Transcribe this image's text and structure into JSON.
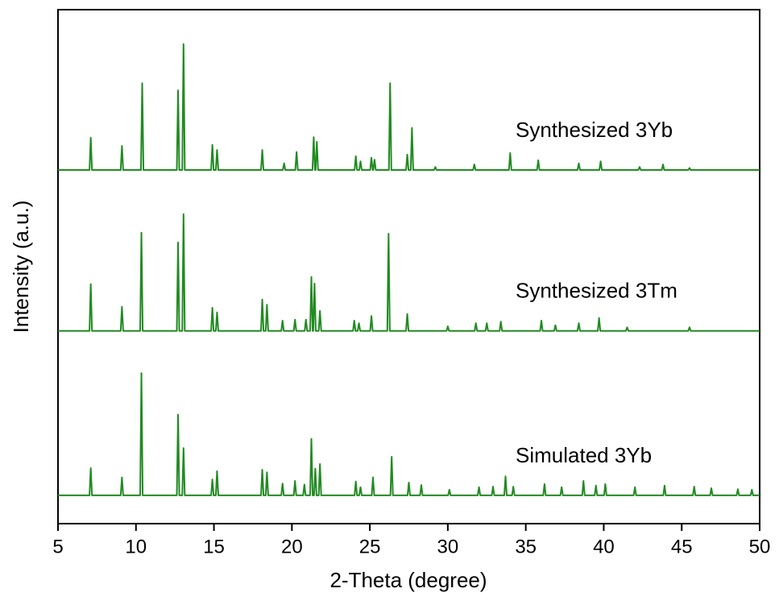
{
  "chart_data": {
    "type": "line",
    "x_label": "2-Theta (degree)",
    "y_label": "Intensity (a.u.)",
    "xlim": [
      5,
      50
    ],
    "xticks": [
      5,
      10,
      15,
      20,
      25,
      30,
      35,
      40,
      45,
      50
    ],
    "ylim": [
      0,
      100
    ],
    "series": [
      {
        "name": "Synthesized 3Yb",
        "color": "#228b22",
        "x": [
          5,
          7.02,
          7.1,
          7.18,
          9.02,
          9.1,
          9.18,
          10.32,
          10.4,
          10.48,
          12.62,
          12.7,
          12.78,
          12.97,
          13.05,
          13.13,
          14.82,
          14.9,
          14.98,
          15.12,
          15.2,
          15.28,
          18.02,
          18.1,
          18.18,
          19.42,
          19.5,
          19.58,
          20.22,
          20.3,
          20.38,
          21.32,
          21.4,
          21.48,
          21.52,
          21.6,
          21.68,
          24.02,
          24.1,
          24.18,
          24.32,
          24.4,
          24.48,
          25.02,
          25.1,
          25.18,
          25.22,
          25.3,
          25.38,
          26.22,
          26.3,
          26.38,
          27.32,
          27.4,
          27.48,
          27.62,
          27.7,
          27.78,
          29.12,
          29.2,
          29.28,
          31.62,
          31.7,
          31.78,
          33.92,
          34.0,
          34.08,
          35.72,
          35.8,
          35.88,
          38.32,
          38.4,
          38.48,
          39.72,
          39.8,
          39.88,
          42.22,
          42.3,
          42.38,
          43.72,
          43.8,
          43.88,
          45.42,
          45.5,
          45.58,
          50
        ],
        "values": [
          68.8,
          68.8,
          75.1,
          68.8,
          68.8,
          73.5,
          68.8,
          68.8,
          85.7,
          68.8,
          68.8,
          84.3,
          68.8,
          68.8,
          93.3,
          68.8,
          68.8,
          73.7,
          68.8,
          68.8,
          72.7,
          68.8,
          68.8,
          72.7,
          68.8,
          68.8,
          70.1,
          68.8,
          68.8,
          72.3,
          68.8,
          68.8,
          75.2,
          68.8,
          68.8,
          74.3,
          68.8,
          68.8,
          71.5,
          68.8,
          68.8,
          70.5,
          68.8,
          68.8,
          71.2,
          68.8,
          68.8,
          70.8,
          68.8,
          68.8,
          85.7,
          68.8,
          68.8,
          71.8,
          68.8,
          68.8,
          77.0,
          68.8,
          68.8,
          69.4,
          68.8,
          68.8,
          69.9,
          68.8,
          68.8,
          72.1,
          68.8,
          68.8,
          70.7,
          68.8,
          68.8,
          70.1,
          68.8,
          68.8,
          70.5,
          68.8,
          68.8,
          69.4,
          68.8,
          68.8,
          69.9,
          68.8,
          68.8,
          69.2,
          68.8,
          68.8
        ]
      },
      {
        "name": "Synthesized 3Tm",
        "color": "#228b22",
        "x": [
          5,
          7.02,
          7.1,
          7.18,
          9.02,
          9.1,
          9.18,
          10.27,
          10.35,
          10.43,
          12.62,
          12.7,
          12.78,
          12.97,
          13.05,
          13.13,
          14.82,
          14.9,
          14.98,
          15.12,
          15.2,
          15.28,
          18.02,
          18.1,
          18.18,
          18.32,
          18.4,
          18.48,
          19.32,
          19.4,
          19.48,
          20.12,
          20.2,
          20.28,
          20.82,
          20.9,
          20.98,
          21.17,
          21.25,
          21.33,
          21.37,
          21.45,
          21.53,
          21.72,
          21.8,
          21.88,
          23.92,
          24.0,
          24.08,
          24.22,
          24.3,
          24.38,
          25.02,
          25.1,
          25.18,
          26.12,
          26.2,
          26.28,
          27.32,
          27.4,
          27.48,
          29.92,
          30.0,
          30.08,
          31.72,
          31.8,
          31.88,
          32.42,
          32.5,
          32.58,
          33.32,
          33.4,
          33.48,
          35.92,
          36.0,
          36.08,
          36.82,
          36.9,
          36.98,
          38.32,
          38.4,
          38.48,
          39.62,
          39.7,
          39.78,
          41.42,
          41.5,
          41.58,
          45.42,
          45.5,
          45.58,
          50
        ],
        "values": [
          37.5,
          37.5,
          46.6,
          37.5,
          37.5,
          42.2,
          37.5,
          37.5,
          56.6,
          37.5,
          37.5,
          54.7,
          37.5,
          37.5,
          60.2,
          37.5,
          37.5,
          42.0,
          37.5,
          37.5,
          41.1,
          37.5,
          37.5,
          43.6,
          37.5,
          37.5,
          42.6,
          37.5,
          37.5,
          39.5,
          37.5,
          37.5,
          39.7,
          37.5,
          37.5,
          39.7,
          37.5,
          37.5,
          48.0,
          37.5,
          37.5,
          46.7,
          37.5,
          37.5,
          41.4,
          37.5,
          37.5,
          39.5,
          37.5,
          37.5,
          39.0,
          37.5,
          37.5,
          40.4,
          37.5,
          37.5,
          56.4,
          37.5,
          37.5,
          40.8,
          37.5,
          37.5,
          38.4,
          37.5,
          37.5,
          39.0,
          37.5,
          37.5,
          39.0,
          37.5,
          37.5,
          39.3,
          37.5,
          37.5,
          39.5,
          37.5,
          37.5,
          38.6,
          37.5,
          37.5,
          39.0,
          37.5,
          37.5,
          40.0,
          37.5,
          37.5,
          38.2,
          37.5,
          37.5,
          38.2,
          37.5,
          37.5
        ]
      },
      {
        "name": "Simulated 3Yb",
        "color": "#228b22",
        "x": [
          5,
          7.02,
          7.1,
          7.18,
          9.02,
          9.1,
          9.18,
          10.27,
          10.35,
          10.43,
          12.62,
          12.7,
          12.78,
          12.97,
          13.05,
          13.13,
          14.82,
          14.9,
          14.98,
          15.12,
          15.2,
          15.28,
          18.02,
          18.1,
          18.18,
          18.32,
          18.4,
          18.48,
          19.32,
          19.4,
          19.48,
          20.12,
          20.2,
          20.28,
          20.72,
          20.8,
          20.88,
          21.17,
          21.25,
          21.33,
          21.42,
          21.5,
          21.58,
          21.72,
          21.8,
          21.88,
          24.02,
          24.1,
          24.18,
          24.32,
          24.4,
          24.48,
          25.12,
          25.2,
          25.28,
          26.32,
          26.4,
          26.48,
          27.42,
          27.5,
          27.58,
          28.22,
          28.3,
          28.38,
          30.02,
          30.1,
          30.18,
          31.92,
          32.0,
          32.08,
          32.82,
          32.9,
          32.98,
          33.62,
          33.7,
          33.78,
          34.12,
          34.2,
          34.28,
          36.12,
          36.2,
          36.28,
          37.22,
          37.3,
          37.38,
          38.62,
          38.7,
          38.78,
          39.42,
          39.5,
          39.58,
          40.02,
          40.1,
          40.18,
          41.92,
          42.0,
          42.08,
          43.82,
          43.9,
          43.98,
          45.72,
          45.8,
          45.88,
          46.82,
          46.9,
          46.98,
          48.52,
          48.6,
          48.68,
          49.42,
          49.5,
          49.58,
          50
        ],
        "values": [
          5.5,
          5.5,
          10.8,
          5.5,
          5.5,
          9.0,
          5.5,
          5.5,
          29.3,
          5.5,
          5.5,
          21.2,
          5.5,
          5.5,
          14.7,
          5.5,
          5.5,
          8.6,
          5.5,
          5.5,
          10.2,
          5.5,
          5.5,
          10.5,
          5.5,
          5.5,
          10.0,
          5.5,
          5.5,
          7.8,
          5.5,
          5.5,
          8.3,
          5.5,
          5.5,
          7.6,
          5.5,
          5.5,
          16.5,
          5.5,
          5.5,
          10.7,
          5.5,
          5.5,
          11.6,
          5.5,
          5.5,
          8.2,
          5.5,
          5.5,
          7.1,
          5.5,
          5.5,
          9.0,
          5.5,
          5.5,
          13.0,
          5.5,
          5.5,
          8.0,
          5.5,
          5.5,
          7.5,
          5.5,
          5.5,
          6.6,
          5.5,
          5.5,
          7.1,
          5.5,
          5.5,
          7.2,
          5.5,
          5.5,
          9.2,
          5.5,
          5.5,
          7.2,
          5.5,
          5.5,
          7.7,
          5.5,
          5.5,
          7.1,
          5.5,
          5.5,
          8.3,
          5.5,
          5.5,
          7.4,
          5.5,
          5.5,
          7.7,
          5.5,
          5.5,
          7.1,
          5.5,
          5.5,
          7.4,
          5.5,
          5.5,
          7.2,
          5.5,
          5.5,
          6.9,
          5.5,
          5.5,
          6.7,
          5.5,
          5.5,
          6.6,
          5.5,
          5.5
        ]
      }
    ]
  }
}
